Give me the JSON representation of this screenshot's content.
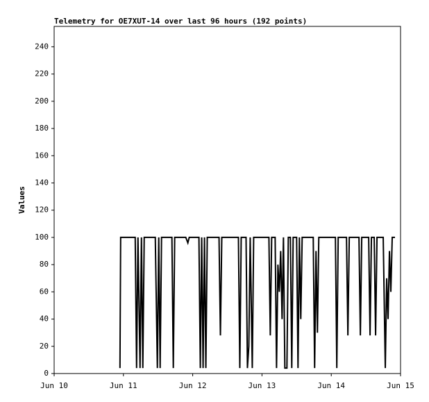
{
  "chart_data": {
    "type": "line",
    "title": "Telemetry for OE7XUT-14 over last 96 hours (192 points)",
    "y_label": "Values",
    "xlim": [
      10,
      15
    ],
    "xticks": [
      {
        "value": 10,
        "label": "Jun 10"
      },
      {
        "value": 11,
        "label": "Jun 11"
      },
      {
        "value": 12,
        "label": "Jun 12"
      },
      {
        "value": 13,
        "label": "Jun 13"
      },
      {
        "value": 14,
        "label": "Jun 14"
      },
      {
        "value": 15,
        "label": "Jun 15"
      }
    ],
    "ylim": [
      0,
      255
    ],
    "yticks": [
      0,
      20,
      40,
      60,
      80,
      100,
      120,
      140,
      160,
      180,
      200,
      220,
      240
    ],
    "grid": false,
    "series": [
      {
        "color": "#000000",
        "x": [
          10.95,
          10.96,
          11.17,
          11.19,
          11.21,
          11.24,
          11.26,
          11.28,
          11.3,
          11.46,
          11.49,
          11.51,
          11.53,
          11.55,
          11.7,
          11.72,
          11.74,
          11.9,
          11.93,
          11.95,
          12.09,
          12.11,
          12.13,
          12.15,
          12.17,
          12.19,
          12.21,
          12.38,
          12.4,
          12.42,
          12.66,
          12.68,
          12.7,
          12.77,
          12.79,
          12.81,
          12.83,
          12.86,
          12.88,
          13.1,
          13.12,
          13.14,
          13.19,
          13.21,
          13.23,
          13.25,
          13.27,
          13.29,
          13.31,
          13.33,
          13.36,
          13.38,
          13.41,
          13.43,
          13.45,
          13.5,
          13.52,
          13.54,
          13.56,
          13.58,
          13.74,
          13.76,
          13.78,
          13.8,
          13.82,
          14.06,
          14.08,
          14.1,
          14.22,
          14.24,
          14.26,
          14.4,
          14.42,
          14.44,
          14.54,
          14.56,
          14.58,
          14.62,
          14.64,
          14.66,
          14.75,
          14.78,
          14.8,
          14.82,
          14.84,
          14.86,
          14.88,
          14.92
        ],
        "values": [
          4,
          100,
          100,
          4,
          100,
          4,
          100,
          4,
          100,
          100,
          4,
          100,
          4,
          100,
          100,
          4,
          100,
          100,
          96,
          100,
          100,
          4,
          100,
          4,
          100,
          4,
          100,
          100,
          28,
          100,
          100,
          4,
          100,
          100,
          4,
          20,
          100,
          4,
          100,
          100,
          28,
          100,
          100,
          4,
          80,
          60,
          90,
          40,
          100,
          4,
          4,
          100,
          100,
          4,
          100,
          100,
          4,
          100,
          40,
          100,
          100,
          4,
          90,
          30,
          100,
          100,
          4,
          100,
          100,
          28,
          100,
          100,
          28,
          100,
          100,
          28,
          100,
          100,
          28,
          100,
          100,
          4,
          70,
          40,
          90,
          60,
          100,
          100
        ]
      }
    ]
  }
}
